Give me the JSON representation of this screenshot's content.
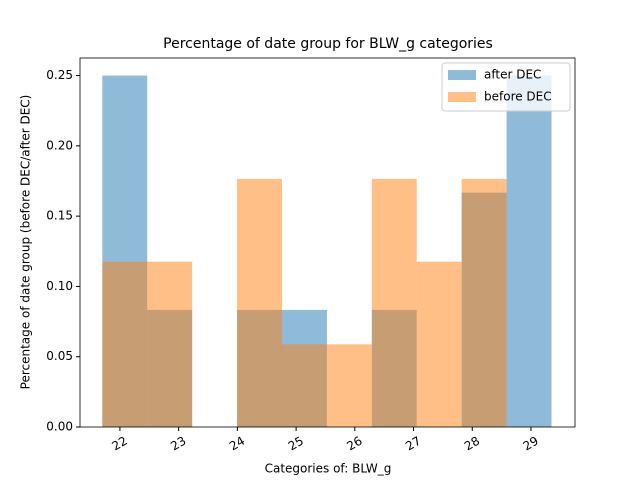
{
  "chart_data": {
    "type": "histogram",
    "title": "Percentage of date group for BLW_g categories",
    "xlabel": "Categories of: BLW_g",
    "ylabel": "Percentage of date group (before DEC/after DEC)",
    "bins": [
      21.7,
      22.465,
      23.23,
      23.995,
      24.76,
      25.525,
      26.29,
      27.055,
      27.82,
      28.585,
      29.35
    ],
    "series": [
      {
        "name": "after DEC",
        "color": "#1f77b4",
        "values": [
          0.25,
          0.0833,
          0,
          0.0833,
          0.0833,
          0,
          0.0833,
          0,
          0.1667,
          0.25
        ]
      },
      {
        "name": "before DEC",
        "color": "#ff7f0e",
        "values": [
          0.1176,
          0.1176,
          0,
          0.1765,
          0.0588,
          0.0588,
          0.1765,
          0.1176,
          0.1765,
          0
        ]
      }
    ],
    "opacity": 0.5,
    "xlim": [
      21.32,
      29.75
    ],
    "xticks": [
      22,
      23,
      24,
      25,
      26,
      27,
      28,
      29
    ],
    "ylim": [
      0,
      0.2625
    ],
    "yticks": [
      {
        "value": 0,
        "label": "0.00"
      },
      {
        "value": 0.05,
        "label": "0.05"
      },
      {
        "value": 0.1,
        "label": "0.10"
      },
      {
        "value": 0.15,
        "label": "0.15"
      },
      {
        "value": 0.2,
        "label": "0.20"
      },
      {
        "value": 0.25,
        "label": "0.25"
      }
    ],
    "legend": "upper right"
  }
}
